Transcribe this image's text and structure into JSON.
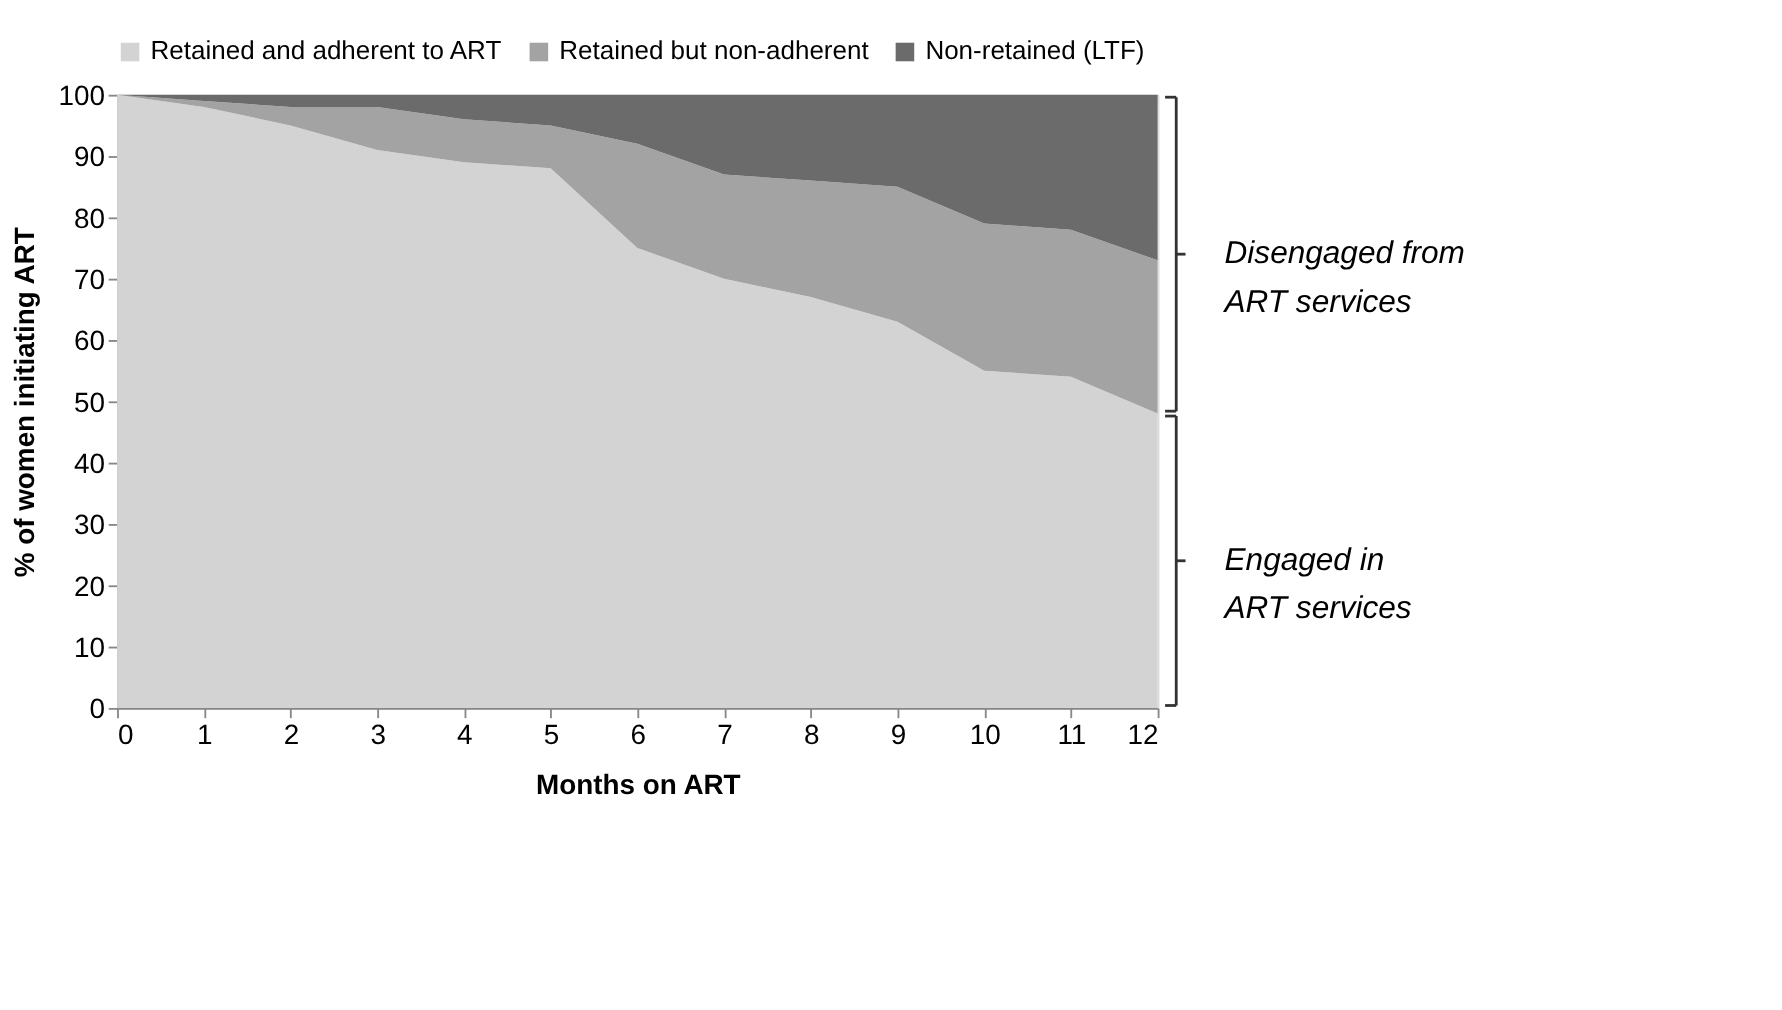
{
  "chart_data": {
    "type": "area",
    "stacked": true,
    "xlabel": "Months on ART",
    "ylabel": "% of women initiating ART",
    "x": [
      0,
      1,
      2,
      3,
      4,
      5,
      6,
      7,
      8,
      9,
      10,
      11,
      12
    ],
    "series": [
      {
        "name": "Retained and adherent to ART",
        "color": "#d3d3d3",
        "values": [
          100,
          98,
          95,
          91,
          89,
          88,
          75,
          70,
          67,
          63,
          55,
          54,
          48
        ]
      },
      {
        "name": "Retained but non-adherent",
        "color": "#a3a3a3",
        "values": [
          0,
          1,
          3,
          7,
          7,
          7,
          17,
          17,
          19,
          22,
          24,
          24,
          25
        ]
      },
      {
        "name": "Non-retained (LTF)",
        "color": "#6b6b6b",
        "values": [
          0,
          1,
          2,
          2,
          4,
          5,
          8,
          13,
          14,
          15,
          21,
          22,
          27
        ]
      }
    ],
    "xlim": [
      0,
      12
    ],
    "xticks": [
      0,
      1,
      2,
      3,
      4,
      5,
      6,
      7,
      8,
      9,
      10,
      11,
      12
    ],
    "ylim": [
      0,
      100
    ],
    "yticks": [
      0,
      10,
      20,
      30,
      40,
      50,
      60,
      70,
      80,
      90,
      100
    ],
    "grid": false,
    "legend": "top left",
    "annotations": [
      {
        "text": "Disengaged from ART services",
        "x": 12,
        "y": 74
      },
      {
        "text": "Engaged in ART services",
        "x": 12,
        "y": 24
      }
    ]
  }
}
